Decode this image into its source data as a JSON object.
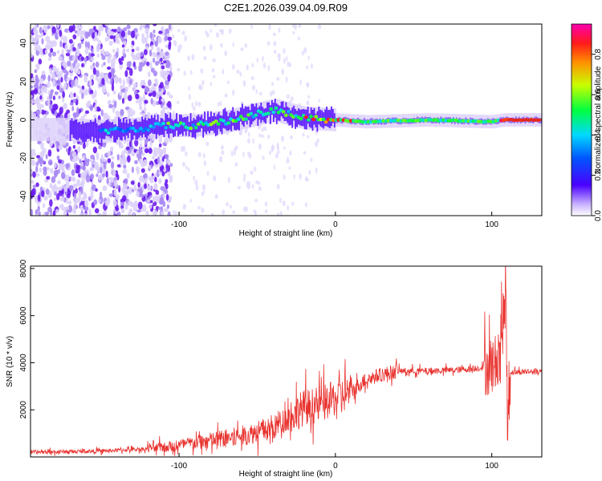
{
  "title": "C2E1.2026.039.04.09.R09",
  "colors": {
    "snr_line": "#e8322e",
    "strong_signal": "#e02a1e"
  },
  "chart_data": [
    {
      "type": "heatmap",
      "xlabel": "Height of straight line (km)",
      "ylabel": "Frequency (Hz)",
      "xlim": [
        -195,
        132
      ],
      "ylim": [
        -50,
        50
      ],
      "x_ticks": [
        -100,
        0,
        100
      ],
      "x_tick_labels": [
        "-100",
        "0",
        "100"
      ],
      "y_ticks": [
        -40,
        -20,
        0,
        20,
        40
      ],
      "y_tick_labels": [
        "-40",
        "-20",
        "0",
        "20",
        "40"
      ],
      "colorbar": {
        "label": "Normalized spectral amplitude",
        "range": [
          0,
          0.95
        ],
        "ticks": [
          0,
          0.2,
          0.4,
          0.6,
          0.8
        ],
        "tick_labels": [
          "0.0",
          "0.2",
          "0.4",
          "0.6",
          "0.8"
        ]
      },
      "ridge": {
        "description_points_x": [
          -195,
          -170,
          -150,
          -130,
          -110,
          -90,
          -70,
          -55,
          -45,
          -38,
          -30,
          -20,
          0,
          20,
          60,
          100,
          108,
          132
        ],
        "description_points_freq": [
          -5,
          -5,
          -6,
          -5,
          -3,
          -3,
          -1,
          2,
          4,
          5,
          3,
          1,
          0,
          -1,
          0,
          -1,
          0,
          0
        ]
      }
    },
    {
      "type": "line",
      "xlabel": "Height of straight line (km)",
      "ylabel": "SNR (10 * v/v)",
      "xlim": [
        -195,
        132
      ],
      "ylim": [
        0,
        8100
      ],
      "x_ticks": [
        -100,
        0,
        100
      ],
      "x_tick_labels": [
        "-100",
        "0",
        "100"
      ],
      "y_ticks": [
        2000,
        4000,
        6000,
        8000
      ],
      "y_tick_labels": [
        "2000",
        "4000",
        "6000",
        "8000"
      ],
      "series": [
        {
          "name": "SNR",
          "x": [
            -195,
            -150,
            -120,
            -100,
            -80,
            -60,
            -40,
            -30,
            -20,
            -10,
            0,
            10,
            20,
            30,
            40,
            60,
            80,
            95,
            100,
            103,
            106,
            108,
            109,
            110,
            111,
            112,
            115,
            132
          ],
          "y": [
            200,
            250,
            350,
            500,
            700,
            900,
            1200,
            1700,
            2100,
            2200,
            2500,
            2800,
            3300,
            3500,
            3650,
            3650,
            3700,
            3800,
            3900,
            4000,
            5200,
            6000,
            8100,
            1000,
            2800,
            3600,
            3600,
            3650
          ]
        }
      ]
    }
  ]
}
